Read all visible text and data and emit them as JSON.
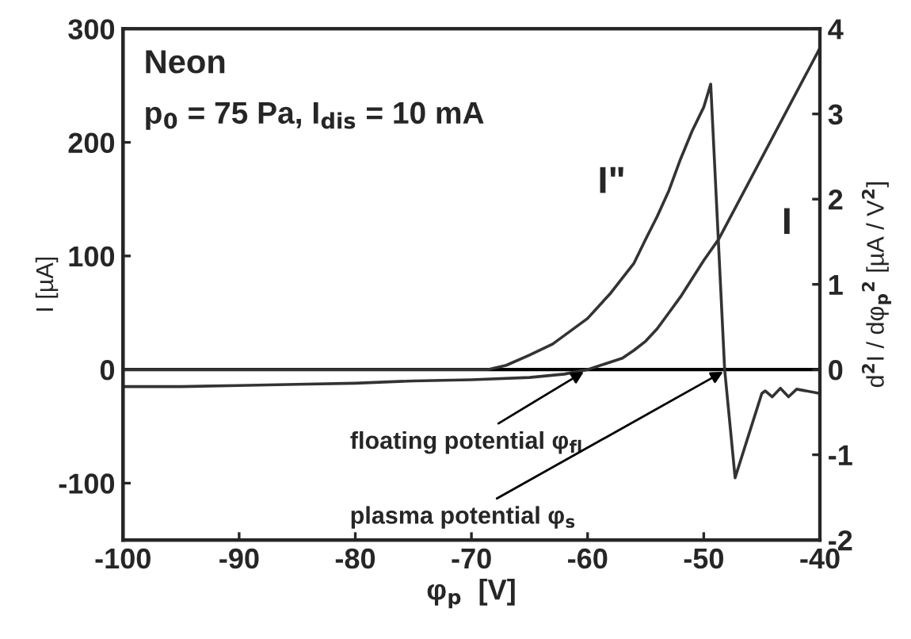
{
  "chart_data": {
    "type": "line",
    "xlabel": "φ$_{p}$  [V]",
    "ylabel": "I [µA]",
    "y2label": "d$^{2}$I / dφ$_{p}$$^{2}$ [µA / V$^{2}$]",
    "xlim": [
      -100,
      -40
    ],
    "xticks": [
      -100,
      -90,
      -80,
      -70,
      -60,
      -50,
      -40
    ],
    "ylim": [
      -150,
      300
    ],
    "yticks": [
      -100,
      0,
      100,
      200,
      300
    ],
    "y2lim": [
      -2,
      4
    ],
    "y2ticks": [
      -2,
      -1,
      0,
      1,
      2,
      3,
      4
    ],
    "series": [
      {
        "name": "I\"",
        "color": "#333333",
        "axis": "y2",
        "x": [
          -100,
          -68.6,
          -67,
          -65,
          -63,
          -60,
          -58,
          -56,
          -55,
          -54,
          -53,
          -52,
          -51,
          -50,
          -49.4,
          -48.2,
          -47.3,
          -45.0,
          -44.7,
          -44.1,
          -43.4,
          -42.7,
          -42.0,
          -40
        ],
        "values": [
          0,
          0,
          0.05,
          0.17,
          0.3,
          0.6,
          0.9,
          1.25,
          1.53,
          1.8,
          2.1,
          2.47,
          2.8,
          3.08,
          3.35,
          0,
          -1.27,
          -0.28,
          -0.25,
          -0.32,
          -0.22,
          -0.32,
          -0.23,
          -0.28
        ]
      },
      {
        "name": "I",
        "color": "#333333",
        "axis": "y",
        "x": [
          -100,
          -95,
          -90,
          -85,
          -80,
          -75,
          -70,
          -65,
          -62,
          -60,
          -58.5,
          -57,
          -56,
          -55,
          -54,
          -53,
          -52,
          -51,
          -50,
          -48.7,
          -40
        ],
        "values": [
          -15,
          -15,
          -14,
          -13,
          -12,
          -10,
          -9,
          -7,
          -4,
          0,
          5,
          10,
          17,
          25,
          36,
          50,
          64,
          80,
          96,
          115,
          283
        ]
      }
    ],
    "ref_lines": [
      {
        "axis": "y",
        "value": 0,
        "color": "#000000"
      }
    ],
    "annotations": [
      "Neon",
      "p$_{0}$ = 75 Pa, I$_{dis}$ = 10 mA",
      {
        "text": "floating potential φ$_{fl}$",
        "x": -60,
        "y": 0
      },
      {
        "text": "plasma potential φ$_{s}$",
        "x": -48,
        "y": 0
      }
    ],
    "grid": false,
    "legend": false
  }
}
